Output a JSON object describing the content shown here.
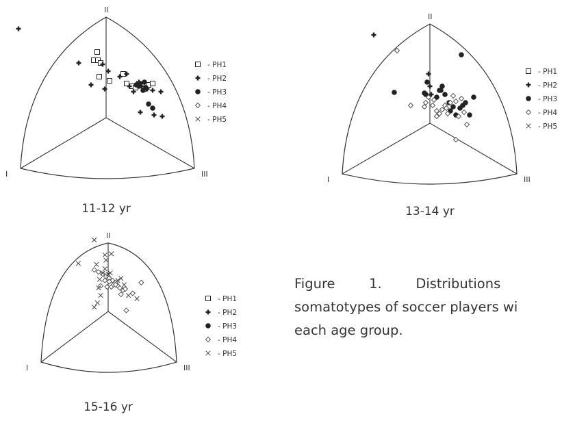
{
  "legend": [
    {
      "symbol": "square",
      "label": "- PH1"
    },
    {
      "symbol": "plus",
      "label": "- PH2"
    },
    {
      "symbol": "circle",
      "label": "- PH3"
    },
    {
      "symbol": "diamond",
      "label": "- PH4"
    },
    {
      "symbol": "x",
      "label": "- PH5"
    }
  ],
  "vertex_labels": [
    "I",
    "II",
    "III"
  ],
  "caption": {
    "line1": "Figure        1.        Distributions",
    "line2": "somatotypes of soccer players wi",
    "line3": "each age group."
  },
  "colors": {
    "ink": "#222222",
    "line": "#333333"
  },
  "chart_data": [
    {
      "type": "scatter",
      "title": "11-12 yr",
      "vertices": [
        "I",
        "II",
        "III"
      ],
      "series": [
        {
          "name": "PH1",
          "symbol": "square",
          "points": [
            [
              -13,
              -96
            ],
            [
              -18,
              -84
            ],
            [
              -12,
              -84
            ],
            [
              -8,
              -80
            ],
            [
              -10,
              -60
            ],
            [
              5,
              -54
            ],
            [
              25,
              -64
            ],
            [
              30,
              -50
            ],
            [
              38,
              -46
            ],
            [
              43,
              -44
            ],
            [
              53,
              -48
            ],
            [
              55,
              -42
            ],
            [
              62,
              -48
            ],
            [
              68,
              -50
            ]
          ]
        },
        {
          "name": "PH2",
          "symbol": "plus",
          "points": [
            [
              -128,
              -130
            ],
            [
              -40,
              -80
            ],
            [
              -5,
              -78
            ],
            [
              3,
              -68
            ],
            [
              20,
              -60
            ],
            [
              30,
              -64
            ],
            [
              34,
              -46
            ],
            [
              45,
              -50
            ],
            [
              48,
              -52
            ],
            [
              52,
              -46
            ],
            [
              60,
              -42
            ],
            [
              68,
              -40
            ],
            [
              80,
              -38
            ],
            [
              50,
              -8
            ],
            [
              70,
              -4
            ],
            [
              82,
              -2
            ],
            [
              -22,
              -48
            ],
            [
              -2,
              -42
            ],
            [
              40,
              -38
            ]
          ]
        },
        {
          "name": "PH3",
          "symbol": "circle",
          "points": [
            [
              44,
              -48
            ],
            [
              50,
              -50
            ],
            [
              56,
              -52
            ],
            [
              58,
              -44
            ],
            [
              62,
              -20
            ],
            [
              68,
              -14
            ],
            [
              48,
              -46
            ],
            [
              54,
              -40
            ]
          ]
        }
      ]
    },
    {
      "type": "scatter",
      "title": "13-14 yr",
      "vertices": [
        "I",
        "II",
        "III"
      ],
      "series": [
        {
          "name": "PH2",
          "symbol": "plus",
          "points": [
            [
              -82,
              -129
            ],
            [
              -2,
              -72
            ],
            [
              0,
              -54
            ],
            [
              2,
              -42
            ]
          ]
        },
        {
          "name": "PH3",
          "symbol": "circle",
          "points": [
            [
              -52,
              -45
            ],
            [
              -4,
              -60
            ],
            [
              -6,
              -42
            ],
            [
              10,
              -38
            ],
            [
              14,
              -48
            ],
            [
              18,
              -54
            ],
            [
              16,
              -48
            ],
            [
              22,
              -42
            ],
            [
              28,
              -30
            ],
            [
              34,
              -24
            ],
            [
              44,
              -22
            ],
            [
              48,
              -26
            ],
            [
              52,
              -30
            ],
            [
              58,
              -12
            ],
            [
              64,
              -38
            ],
            [
              46,
              -100
            ],
            [
              30,
              -18
            ],
            [
              38,
              -12
            ],
            [
              -8,
              -44
            ]
          ]
        },
        {
          "name": "PH4",
          "symbol": "diamond",
          "points": [
            [
              -48,
              -106
            ],
            [
              -8,
              -24
            ],
            [
              -6,
              -30
            ],
            [
              -2,
              -38
            ],
            [
              4,
              -26
            ],
            [
              6,
              -34
            ],
            [
              10,
              -18
            ],
            [
              14,
              -14
            ],
            [
              18,
              -20
            ],
            [
              22,
              -26
            ],
            [
              26,
              -14
            ],
            [
              30,
              -30
            ],
            [
              34,
              -40
            ],
            [
              38,
              -32
            ],
            [
              42,
              -10
            ],
            [
              46,
              -36
            ],
            [
              50,
              -16
            ],
            [
              54,
              2
            ],
            [
              38,
              24
            ],
            [
              10,
              -10
            ],
            [
              -28,
              -26
            ],
            [
              24,
              -22
            ]
          ]
        }
      ]
    },
    {
      "type": "scatter",
      "title": "15-16 yr",
      "vertices": [
        "I",
        "II",
        "III"
      ],
      "series": [
        {
          "name": "PH4",
          "symbol": "diamond",
          "points": [
            [
              -26,
              -78
            ],
            [
              -18,
              -74
            ],
            [
              -10,
              -70
            ],
            [
              -4,
              -66
            ],
            [
              2,
              -62
            ],
            [
              8,
              -58
            ],
            [
              14,
              -54
            ],
            [
              18,
              -48
            ],
            [
              22,
              -44
            ],
            [
              28,
              -40
            ],
            [
              32,
              -42
            ],
            [
              -14,
              -48
            ],
            [
              -2,
              -46
            ],
            [
              6,
              -46
            ],
            [
              10,
              -50
            ],
            [
              46,
              -34
            ],
            [
              62,
              -54
            ],
            [
              24,
              -32
            ],
            [
              34,
              -2
            ],
            [
              -6,
              -58
            ],
            [
              2,
              -56
            ],
            [
              14,
              -50
            ]
          ]
        },
        {
          "name": "PH5",
          "symbol": "x",
          "points": [
            [
              -26,
              -134
            ],
            [
              -56,
              -90
            ],
            [
              -22,
              -88
            ],
            [
              -6,
              -106
            ],
            [
              6,
              -108
            ],
            [
              -4,
              -96
            ],
            [
              -6,
              -80
            ],
            [
              -10,
              -72
            ],
            [
              -16,
              -60
            ],
            [
              -18,
              -44
            ],
            [
              0,
              -70
            ],
            [
              4,
              -72
            ],
            [
              18,
              -58
            ],
            [
              24,
              -62
            ],
            [
              30,
              -50
            ],
            [
              38,
              -30
            ],
            [
              54,
              -24
            ],
            [
              -20,
              -16
            ],
            [
              -14,
              -30
            ],
            [
              -26,
              -8
            ]
          ]
        }
      ]
    }
  ]
}
